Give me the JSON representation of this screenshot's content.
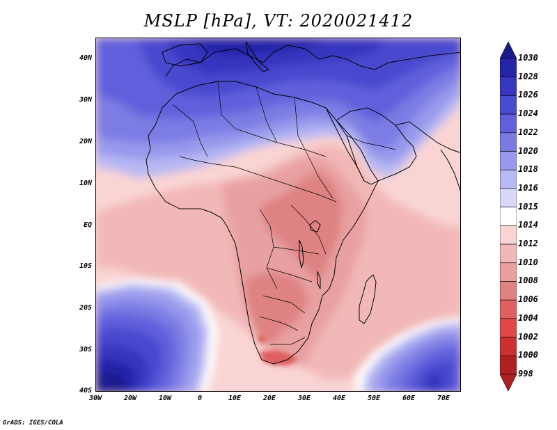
{
  "title": "MSLP [hPa], VT: 2020021412",
  "credit": "GrADS: IGES/COLA",
  "map": {
    "variable": "Mean sea level pressure",
    "units": "hPa",
    "valid_time": "2020021412",
    "region": "Africa, Arabia and southern Europe",
    "lon_range": [
      -30,
      75
    ],
    "lat_range": [
      -40,
      45
    ]
  },
  "axes": {
    "lat_labels": [
      "40N",
      "30N",
      "20N",
      "10N",
      "EQ",
      "10S",
      "20S",
      "30S",
      "40S"
    ],
    "lon_labels": [
      "30W",
      "20W",
      "10W",
      "0",
      "10E",
      "20E",
      "30E",
      "40E",
      "50E",
      "60E",
      "70E"
    ]
  },
  "colorbar": {
    "levels": [
      "1030",
      "1028",
      "1026",
      "1024",
      "1022",
      "1020",
      "1018",
      "1016",
      "1015",
      "1014",
      "1012",
      "1010",
      "1008",
      "1006",
      "1004",
      "1002",
      "1000",
      "998"
    ],
    "colors": [
      "#1a1a8c",
      "#2424a8",
      "#3636bf",
      "#4a4ad0",
      "#6060dc",
      "#7b7be4",
      "#9898ec",
      "#b8b8f4",
      "#d8d8fa",
      "#ffffff",
      "#fad4d4",
      "#f2b8b8",
      "#e8a0a0",
      "#de8282",
      "#e06060",
      "#e04848",
      "#cc3030",
      "#b02020"
    ]
  },
  "highs": [
    {
      "name": "North Atlantic / Mediterranean high",
      "value_hpa": 1030
    },
    {
      "name": "South Atlantic high",
      "value_hpa": 1030
    },
    {
      "name": "South Indian Ocean high",
      "value_hpa": 1026
    }
  ],
  "lows": [
    {
      "name": "Southern Africa thermal low",
      "value_hpa": 1004
    }
  ]
}
